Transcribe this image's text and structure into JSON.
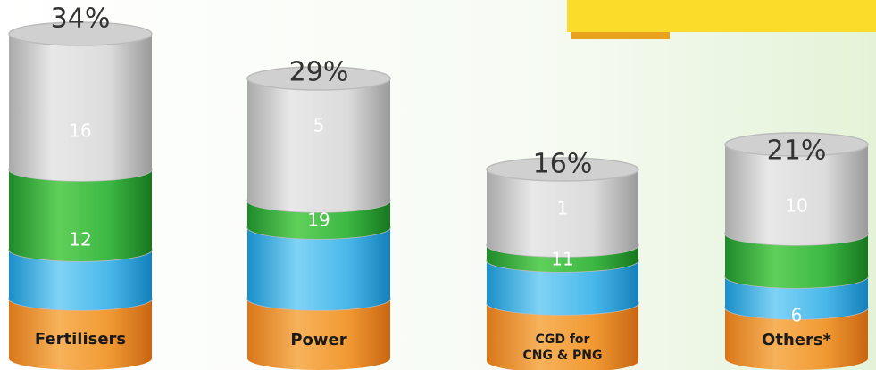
{
  "cylinders": [
    {
      "label": [
        "Fertilisers"
      ],
      "share": "34%",
      "segments": [
        "16",
        "12"
      ]
    },
    {
      "label": [
        "Power"
      ],
      "share": "29%",
      "segments": [
        "5",
        "19"
      ]
    },
    {
      "label": [
        "CGD for",
        "CNG & PNG"
      ],
      "share": "16%",
      "segments": [
        "1",
        "11"
      ]
    },
    {
      "label": [
        "Others*"
      ],
      "share": "21%",
      "segments": [
        "10",
        "6"
      ]
    }
  ]
}
